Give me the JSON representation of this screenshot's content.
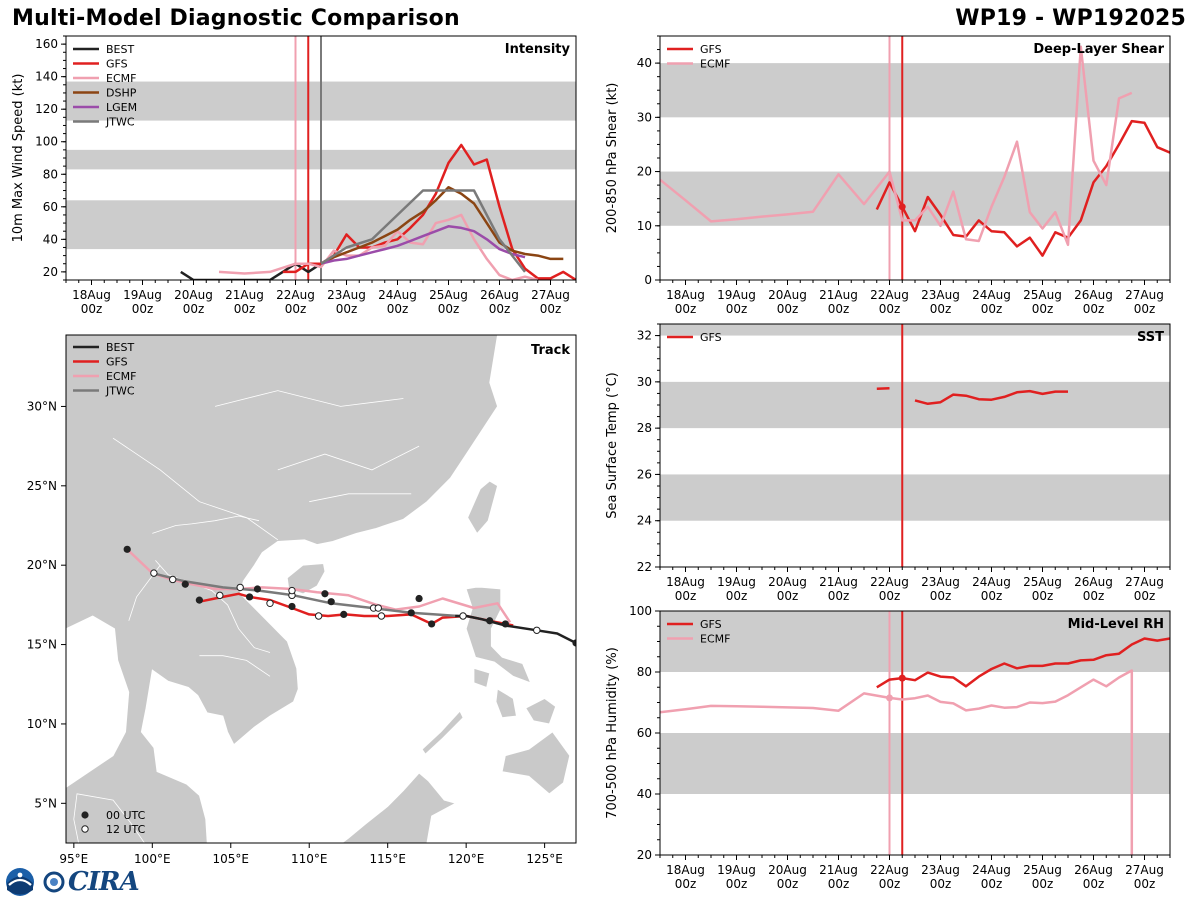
{
  "header": {
    "title_left": "Multi-Model Diagnostic Comparison",
    "title_right": "WP19 - WP192025"
  },
  "logos": {
    "cira_text": "CIRA",
    "noaa_name": "noaa-logo"
  },
  "colors": {
    "BEST": "#222222",
    "GFS": "#e02020",
    "ECMF": "#f0a0b0",
    "DSHP": "#8b4513",
    "LGEM": "#9b4ca9",
    "JTWC": "#7a7a7a",
    "band": "#cccccc",
    "land": "#c9c9c9"
  },
  "time_axis": {
    "day_labels": [
      "18Aug",
      "19Aug",
      "20Aug",
      "21Aug",
      "22Aug",
      "23Aug",
      "24Aug",
      "25Aug",
      "26Aug",
      "27Aug"
    ],
    "sub_label": "00z",
    "range_days": [
      17.5,
      27.5
    ]
  },
  "chart_data": [
    {
      "id": "intensity",
      "type": "line",
      "panel_label": "Intensity",
      "ylabel": "10m Max Wind Speed (kt)",
      "ylim": [
        15,
        165
      ],
      "yticks": [
        20,
        40,
        60,
        80,
        100,
        120,
        140,
        160
      ],
      "bands": [
        [
          34,
          64
        ],
        [
          83,
          95
        ],
        [
          113,
          137
        ]
      ],
      "vlines": [
        {
          "x": 22.0,
          "model": "ECMF"
        },
        {
          "x": 22.25,
          "model": "GFS"
        },
        {
          "x": 22.5,
          "model": "JTWC"
        }
      ],
      "legend": [
        "BEST",
        "GFS",
        "ECMF",
        "DSHP",
        "LGEM",
        "JTWC"
      ],
      "series": [
        {
          "name": "BEST",
          "x": [
            19.75,
            20.0,
            20.25,
            20.5,
            20.75,
            21.0,
            21.25,
            21.5,
            21.75,
            22.0,
            22.25,
            22.5
          ],
          "y": [
            20,
            15,
            15,
            15,
            15,
            15,
            15,
            15,
            20,
            25,
            20,
            25
          ]
        },
        {
          "name": "GFS",
          "x": [
            21.75,
            22.0,
            22.25,
            22.5,
            22.75,
            23.0,
            23.25,
            23.5,
            23.75,
            24.0,
            24.25,
            24.5,
            24.75,
            25.0,
            25.25,
            25.5,
            25.75,
            26.0,
            26.25,
            26.5,
            26.75,
            27.0,
            27.25,
            27.5
          ],
          "y": [
            20,
            20,
            25,
            25,
            30,
            43,
            35,
            35,
            38,
            40,
            47,
            55,
            68,
            87,
            98,
            86,
            89,
            60,
            34,
            22,
            16,
            16,
            20,
            15
          ]
        },
        {
          "name": "ECMF",
          "x": [
            20.5,
            21.0,
            21.5,
            22.0,
            22.25,
            22.5,
            22.75,
            23.0,
            23.25,
            23.5,
            23.75,
            24.0,
            24.25,
            24.5,
            24.75,
            25.0,
            25.25,
            25.5,
            25.75,
            26.0,
            26.25,
            26.5,
            26.75
          ],
          "y": [
            20,
            19,
            20,
            25,
            25,
            23,
            33,
            30,
            30,
            35,
            36,
            45,
            38,
            37,
            50,
            52,
            55,
            40,
            28,
            18,
            15,
            17,
            15
          ]
        },
        {
          "name": "DSHP",
          "x": [
            22.5,
            22.75,
            23.0,
            23.25,
            23.5,
            23.75,
            24.0,
            24.25,
            24.5,
            24.75,
            25.0,
            25.25,
            25.5,
            25.75,
            26.0,
            26.25,
            26.5,
            26.75,
            27.0,
            27.25
          ],
          "y": [
            25,
            29,
            32,
            35,
            38,
            42,
            46,
            52,
            57,
            64,
            72,
            68,
            62,
            50,
            38,
            33,
            31,
            30,
            28,
            28
          ]
        },
        {
          "name": "LGEM",
          "x": [
            22.5,
            22.75,
            23.0,
            23.25,
            23.5,
            23.75,
            24.0,
            24.25,
            24.5,
            24.75,
            25.0,
            25.25,
            25.5,
            25.75,
            26.0,
            26.25,
            26.5
          ],
          "y": [
            25,
            27,
            28,
            30,
            32,
            34,
            36,
            39,
            42,
            45,
            48,
            47,
            45,
            40,
            34,
            31,
            29
          ]
        },
        {
          "name": "JTWC",
          "x": [
            22.5,
            23.0,
            23.5,
            24.0,
            24.5,
            25.0,
            25.5,
            26.0,
            26.5
          ],
          "y": [
            25,
            35,
            40,
            55,
            70,
            70,
            70,
            40,
            20
          ]
        }
      ]
    },
    {
      "id": "track",
      "type": "scatter",
      "panel_label": "Track",
      "xlim": [
        94.5,
        127.0
      ],
      "ylim": [
        2.5,
        34.5
      ],
      "xticks": [
        95,
        100,
        105,
        110,
        115,
        120,
        125
      ],
      "xtick_labels": [
        "95°E",
        "100°E",
        "105°E",
        "110°E",
        "115°E",
        "120°E",
        "125°E"
      ],
      "yticks": [
        5,
        10,
        15,
        20,
        25,
        30
      ],
      "ytick_labels": [
        "5°N",
        "10°N",
        "15°N",
        "20°N",
        "25°N",
        "30°N"
      ],
      "legend": [
        "BEST",
        "GFS",
        "ECMF",
        "JTWC"
      ],
      "marker_legend": [
        "00 UTC",
        "12 UTC"
      ],
      "series": [
        {
          "name": "ECMF",
          "lon": [
            98.4,
            100.0,
            101.2,
            102.5,
            104.0,
            105.5,
            107.0,
            108.9,
            110.5,
            112.5,
            114.3,
            115.5,
            117.0,
            118.5,
            120.5,
            122.0,
            122.8
          ],
          "lat": [
            21.0,
            19.5,
            19.1,
            18.8,
            18.5,
            18.5,
            18.6,
            18.5,
            18.3,
            18.1,
            17.5,
            17.2,
            17.4,
            17.9,
            17.3,
            17.6,
            16.4
          ]
        },
        {
          "name": "GFS",
          "lon": [
            103.0,
            104.5,
            105.5,
            106.2,
            107.5,
            108.9,
            110.0,
            111.2,
            112.3,
            113.5,
            115.0,
            116.5,
            117.8,
            118.5,
            120.0,
            121.5,
            123.0
          ],
          "lat": [
            17.7,
            18.0,
            18.2,
            18.0,
            17.8,
            17.3,
            16.9,
            16.8,
            16.9,
            16.8,
            16.8,
            16.9,
            16.3,
            16.7,
            16.8,
            16.5,
            16.2
          ]
        },
        {
          "name": "JTWC",
          "lon": [
            100.0,
            102.0,
            104.5,
            106.8,
            109.0,
            111.4,
            114.0,
            116.5,
            119.5
          ],
          "lat": [
            19.5,
            19.0,
            18.6,
            18.4,
            18.1,
            17.6,
            17.3,
            17.0,
            16.8
          ]
        },
        {
          "name": "BEST",
          "lon": [
            119.3,
            120.0,
            121.0,
            122.5,
            124.5,
            125.8,
            127.0
          ],
          "lat": [
            16.8,
            16.8,
            16.6,
            16.2,
            15.9,
            15.7,
            15.1
          ]
        }
      ],
      "points_00utc": [
        [
          98.4,
          21.0
        ],
        [
          102.1,
          18.8
        ],
        [
          103.0,
          17.8
        ],
        [
          106.2,
          18.0
        ],
        [
          106.7,
          18.5
        ],
        [
          108.9,
          17.4
        ],
        [
          111.0,
          18.2
        ],
        [
          111.4,
          17.7
        ],
        [
          112.2,
          16.9
        ],
        [
          116.5,
          17.0
        ],
        [
          117.0,
          17.9
        ],
        [
          117.8,
          16.3
        ],
        [
          121.5,
          16.5
        ],
        [
          122.5,
          16.3
        ],
        [
          127.0,
          15.1
        ]
      ],
      "points_12utc": [
        [
          100.1,
          19.5
        ],
        [
          101.3,
          19.1
        ],
        [
          104.3,
          18.1
        ],
        [
          105.6,
          18.6
        ],
        [
          107.5,
          17.6
        ],
        [
          108.9,
          18.1
        ],
        [
          108.9,
          18.4
        ],
        [
          110.6,
          16.8
        ],
        [
          114.1,
          17.3
        ],
        [
          114.4,
          17.3
        ],
        [
          114.6,
          16.8
        ],
        [
          119.8,
          16.8
        ],
        [
          124.5,
          15.9
        ]
      ]
    },
    {
      "id": "shear",
      "type": "line",
      "panel_label": "Deep-Layer Shear",
      "ylabel": "200-850 hPa Shear (kt)",
      "ylim": [
        0,
        45
      ],
      "yticks": [
        0,
        10,
        20,
        30,
        40
      ],
      "bands": [
        [
          10,
          20
        ],
        [
          30,
          40
        ]
      ],
      "vlines": [
        {
          "x": 22.0,
          "model": "ECMF"
        },
        {
          "x": 22.25,
          "model": "GFS"
        }
      ],
      "legend": [
        "GFS",
        "ECMF"
      ],
      "series": [
        {
          "name": "GFS",
          "x": [
            21.75,
            22.0,
            22.25,
            22.5,
            22.75,
            23.0,
            23.25,
            23.5,
            23.75,
            24.0,
            24.25,
            24.5,
            24.75,
            25.0,
            25.25,
            25.5,
            25.75,
            26.0,
            26.25,
            26.5,
            26.75,
            27.0,
            27.25,
            27.5
          ],
          "y": [
            13,
            18,
            13.5,
            9,
            15.3,
            12,
            8.3,
            8,
            11,
            9,
            8.8,
            6.2,
            7.8,
            4.5,
            8.8,
            7.8,
            11,
            18,
            21,
            25,
            29.3,
            29,
            24.5,
            23.5
          ]
        },
        {
          "name": "ECMF",
          "x": [
            17.5,
            18.0,
            18.5,
            19.0,
            19.5,
            20.0,
            20.5,
            21.0,
            21.5,
            22.0,
            22.25,
            22.5,
            22.75,
            23.0,
            23.25,
            23.5,
            23.75,
            24.0,
            24.25,
            24.5,
            24.75,
            25.0,
            25.25,
            25.5,
            25.75,
            26.0,
            26.25,
            26.5,
            26.75
          ],
          "y": [
            18.5,
            14.7,
            10.8,
            11.2,
            11.7,
            12.1,
            12.6,
            19.5,
            14,
            20,
            11,
            11,
            13.5,
            10,
            16.3,
            7.5,
            7.2,
            13.5,
            19,
            25.5,
            12.5,
            9.5,
            12.5,
            6.5,
            43,
            22,
            17.5,
            33.5,
            34.5
          ]
        }
      ]
    },
    {
      "id": "sst",
      "type": "line",
      "panel_label": "SST",
      "ylabel": "Sea Surface Temp (°C)",
      "ylim": [
        22,
        32.5
      ],
      "yticks": [
        22,
        24,
        26,
        28,
        30,
        32
      ],
      "bands": [
        [
          24,
          26
        ],
        [
          28,
          30
        ],
        [
          32,
          33
        ]
      ],
      "vlines": [
        {
          "x": 22.25,
          "model": "GFS"
        }
      ],
      "legend": [
        "GFS"
      ],
      "series": [
        {
          "name": "GFS",
          "x": [
            21.75,
            22.0
          ],
          "y": [
            29.7,
            29.72
          ]
        },
        {
          "name": "GFS",
          "x": [
            22.5,
            22.75,
            23.0,
            23.25,
            23.5,
            23.75,
            24.0,
            24.25,
            24.5,
            24.75,
            25.0,
            25.25,
            25.5
          ],
          "y": [
            29.2,
            29.05,
            29.12,
            29.45,
            29.4,
            29.25,
            29.23,
            29.35,
            29.55,
            29.6,
            29.48,
            29.58,
            29.58
          ]
        }
      ]
    },
    {
      "id": "rh",
      "type": "line",
      "panel_label": "Mid-Level RH",
      "ylabel": "700-500 hPa Humidity (%)",
      "ylim": [
        20,
        100
      ],
      "yticks": [
        20,
        40,
        60,
        80,
        100
      ],
      "bands": [
        [
          40,
          60
        ],
        [
          80,
          100
        ]
      ],
      "vlines": [
        {
          "x": 22.0,
          "model": "ECMF"
        },
        {
          "x": 22.25,
          "model": "GFS"
        }
      ],
      "legend": [
        "GFS",
        "ECMF"
      ],
      "series": [
        {
          "name": "GFS",
          "x": [
            21.75,
            22.0,
            22.25,
            22.5,
            22.75,
            23.0,
            23.25,
            23.5,
            23.75,
            24.0,
            24.25,
            24.5,
            24.75,
            25.0,
            25.25,
            25.5,
            25.75,
            26.0,
            26.25,
            26.5,
            26.75,
            27.0,
            27.25,
            27.5
          ],
          "y": [
            75,
            77.5,
            78,
            77.3,
            79.8,
            78.5,
            78.2,
            75.3,
            78.5,
            81,
            82.8,
            81.2,
            82,
            82,
            82.8,
            82.8,
            83.8,
            84,
            85.5,
            86,
            89,
            91,
            90.3,
            91
          ]
        },
        {
          "name": "ECMF",
          "x": [
            17.5,
            18.0,
            18.5,
            19.0,
            19.5,
            20.0,
            20.5,
            21.0,
            21.5,
            22.0,
            22.25,
            22.5,
            22.75,
            23.0,
            23.25,
            23.5,
            23.75,
            24.0,
            24.25,
            24.5,
            24.75,
            25.0,
            25.25,
            25.5,
            25.75,
            26.0,
            26.25,
            26.5,
            26.75,
            26.75
          ],
          "y": [
            66.8,
            67.8,
            68.9,
            68.8,
            68.6,
            68.4,
            68.2,
            67.3,
            73,
            71.5,
            71,
            71.4,
            72.3,
            70.2,
            69.7,
            67.4,
            68,
            69,
            68.3,
            68.5,
            70,
            69.8,
            70.3,
            72.4,
            75,
            77.5,
            75.3,
            78.2,
            80.5,
            20
          ]
        }
      ]
    }
  ]
}
